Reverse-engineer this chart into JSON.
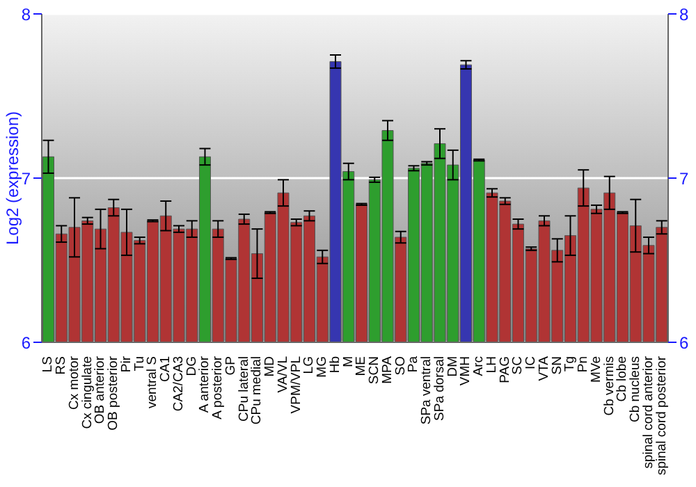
{
  "chart_data": {
    "type": "bar",
    "ylabel": "Log2 (expression)",
    "categories": [
      "LS",
      "RS",
      "Cx motor",
      "Cx cingulate",
      "OB anterior",
      "OB posterior",
      "Pir",
      "Tu",
      "ventral S",
      "CA1",
      "CA2/CA3",
      "DG",
      "A anterior",
      "A posterior",
      "GP",
      "CPu lateral",
      "CPu medial",
      "MD",
      "VA/VL",
      "VPM/VPL",
      "LG",
      "MG",
      "Hb",
      "M",
      "ME",
      "SCN",
      "MPA",
      "SO",
      "Pa",
      "SPa ventral",
      "SPa dorsal",
      "DM",
      "VMH",
      "Arc",
      "LH",
      "PAG",
      "SC",
      "IC",
      "VTA",
      "SN",
      "Tg",
      "Pn",
      "MVe",
      "Cb vermis",
      "Cb lobe",
      "Cb nucleus",
      "spinal cord anterior",
      "spinal cord posterior"
    ],
    "values": [
      7.13,
      6.66,
      6.7,
      6.74,
      6.69,
      6.82,
      6.67,
      6.62,
      6.74,
      6.77,
      6.69,
      6.69,
      7.13,
      6.69,
      6.51,
      6.75,
      6.54,
      6.79,
      6.91,
      6.73,
      6.77,
      6.52,
      7.71,
      7.04,
      6.84,
      6.99,
      7.29,
      6.64,
      7.06,
      7.09,
      7.21,
      7.08,
      7.69,
      7.11,
      6.91,
      6.86,
      6.72,
      6.57,
      6.74,
      6.56,
      6.65,
      6.94,
      6.81,
      6.91,
      6.79,
      6.71,
      6.59,
      6.7
    ],
    "errors": [
      0.1,
      0.05,
      0.18,
      0.02,
      0.12,
      0.05,
      0.14,
      0.02,
      0.005,
      0.09,
      0.02,
      0.05,
      0.05,
      0.05,
      0.005,
      0.03,
      0.15,
      0.005,
      0.08,
      0.02,
      0.03,
      0.04,
      0.04,
      0.05,
      0.005,
      0.015,
      0.06,
      0.035,
      0.015,
      0.01,
      0.09,
      0.09,
      0.025,
      0.005,
      0.025,
      0.02,
      0.03,
      0.01,
      0.03,
      0.07,
      0.12,
      0.11,
      0.025,
      0.1,
      0.005,
      0.16,
      0.05,
      0.04
    ],
    "colors": [
      "#2e9e2e",
      "#b03434",
      "#b03434",
      "#b03434",
      "#b03434",
      "#b03434",
      "#b03434",
      "#b03434",
      "#b03434",
      "#b03434",
      "#b03434",
      "#b03434",
      "#2e9e2e",
      "#b03434",
      "#b03434",
      "#b03434",
      "#b03434",
      "#b03434",
      "#b03434",
      "#b03434",
      "#b03434",
      "#b03434",
      "#3636b0",
      "#2e9e2e",
      "#b03434",
      "#2e9e2e",
      "#2e9e2e",
      "#b03434",
      "#2e9e2e",
      "#2e9e2e",
      "#2e9e2e",
      "#2e9e2e",
      "#3636b0",
      "#2e9e2e",
      "#b03434",
      "#b03434",
      "#b03434",
      "#b03434",
      "#b03434",
      "#b03434",
      "#b03434",
      "#b03434",
      "#b03434",
      "#b03434",
      "#b03434",
      "#b03434",
      "#b03434",
      "#b03434"
    ],
    "ylim": [
      6,
      8
    ],
    "yticks": [
      6,
      7,
      8
    ],
    "y2lim": [
      6,
      8
    ],
    "y2ticks": [
      6,
      7,
      8
    ],
    "grid": "y"
  }
}
